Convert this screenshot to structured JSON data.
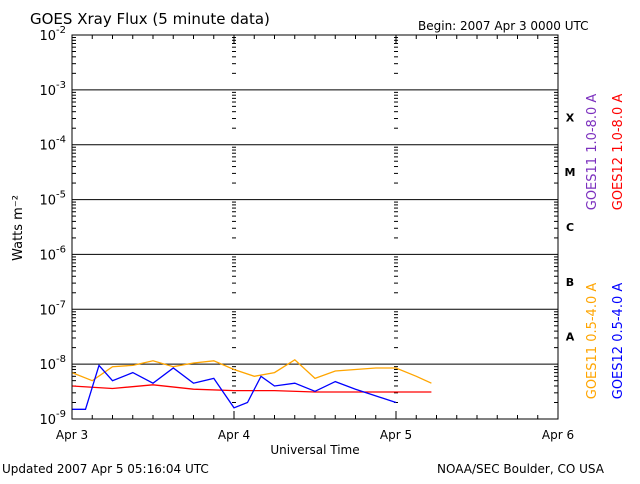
{
  "header": {
    "title": "GOES Xray Flux (5 minute data)",
    "begin": "Begin:  2007 Apr 3 0000 UTC"
  },
  "footer": {
    "updated": "Updated 2007 Apr  5 05:16:04 UTC",
    "credit": "NOAA/SEC Boulder, CO USA"
  },
  "colors": {
    "goes11_long": "#7b2fbe",
    "goes12_long": "#ff0000",
    "goes11_short": "#ffa500",
    "goes12_short": "#0000ff",
    "axis": "#000000"
  },
  "chart_data": {
    "type": "line",
    "title": "GOES Xray Flux (5 minute data)",
    "xlabel": "Universal Time",
    "ylabel": "Watts m⁻²",
    "yscale": "log",
    "ylim": [
      1e-09,
      0.01
    ],
    "xlim": [
      "2007-04-03 00:00",
      "2007-04-06 00:00"
    ],
    "x_ticks": [
      "Apr 3",
      "Apr 4",
      "Apr 5",
      "Apr 6"
    ],
    "y_ticks": [
      {
        "base": "10",
        "exp": "-2"
      },
      {
        "base": "10",
        "exp": "-3"
      },
      {
        "base": "10",
        "exp": "-4"
      },
      {
        "base": "10",
        "exp": "-5"
      },
      {
        "base": "10",
        "exp": "-6"
      },
      {
        "base": "10",
        "exp": "-7"
      },
      {
        "base": "10",
        "exp": "-8"
      },
      {
        "base": "10",
        "exp": "-9"
      }
    ],
    "flare_classes": [
      "X",
      "M",
      "C",
      "B",
      "A"
    ],
    "grid": "horizontal lines at each decade",
    "legend": "right side, vertical text",
    "series": [
      {
        "name": "GOES11 1.0-8.0 A",
        "values": []
      },
      {
        "name": "GOES12 1.0-8.0 A",
        "x": [
          "2007-04-03 00:00",
          "2007-04-03 06:00",
          "2007-04-03 12:00",
          "2007-04-03 18:00",
          "2007-04-04 00:00",
          "2007-04-04 06:00",
          "2007-04-04 12:00",
          "2007-04-04 18:00",
          "2007-04-05 00:00",
          "2007-04-05 05:15"
        ],
        "values": [
          4e-09,
          3.6e-09,
          4.2e-09,
          3.5e-09,
          3.3e-09,
          3.3e-09,
          3.1e-09,
          3.1e-09,
          3.1e-09,
          3.1e-09
        ]
      },
      {
        "name": "GOES11 0.5-4.0 A",
        "x": [
          "2007-04-03 00:00",
          "2007-04-03 03:00",
          "2007-04-03 06:00",
          "2007-04-03 09:00",
          "2007-04-03 12:00",
          "2007-04-03 15:00",
          "2007-04-03 18:00",
          "2007-04-03 21:00",
          "2007-04-04 00:00",
          "2007-04-04 03:00",
          "2007-04-04 06:00",
          "2007-04-04 09:00",
          "2007-04-04 12:00",
          "2007-04-04 15:00",
          "2007-04-04 18:00",
          "2007-04-04 21:00",
          "2007-04-05 00:00",
          "2007-04-05 03:00",
          "2007-04-05 05:15"
        ],
        "values": [
          7e-09,
          5e-09,
          9e-09,
          9.5e-09,
          1.15e-08,
          9e-09,
          1.05e-08,
          1.15e-08,
          8e-09,
          6e-09,
          7e-09,
          1.2e-08,
          5.5e-09,
          7.5e-09,
          8e-09,
          8.5e-09,
          8.5e-09,
          6e-09,
          4.5e-09
        ]
      },
      {
        "name": "GOES12 0.5-4.0 A",
        "x": [
          "2007-04-03 00:00",
          "2007-04-03 02:00",
          "2007-04-03 04:00",
          "2007-04-03 06:00",
          "2007-04-03 09:00",
          "2007-04-03 12:00",
          "2007-04-03 15:00",
          "2007-04-03 18:00",
          "2007-04-03 21:00",
          "2007-04-04 00:00",
          "2007-04-04 02:00",
          "2007-04-04 04:00",
          "2007-04-04 06:00",
          "2007-04-04 09:00",
          "2007-04-04 12:00",
          "2007-04-04 15:00",
          "2007-04-04 18:00",
          "2007-04-05 00:00"
        ],
        "values": [
          1.5e-09,
          1.5e-09,
          9.5e-09,
          5e-09,
          7e-09,
          4.5e-09,
          8.5e-09,
          4.5e-09,
          5.5e-09,
          1.6e-09,
          2e-09,
          6e-09,
          4e-09,
          4.5e-09,
          3.2e-09,
          4.8e-09,
          3.5e-09,
          2e-09
        ]
      }
    ]
  }
}
